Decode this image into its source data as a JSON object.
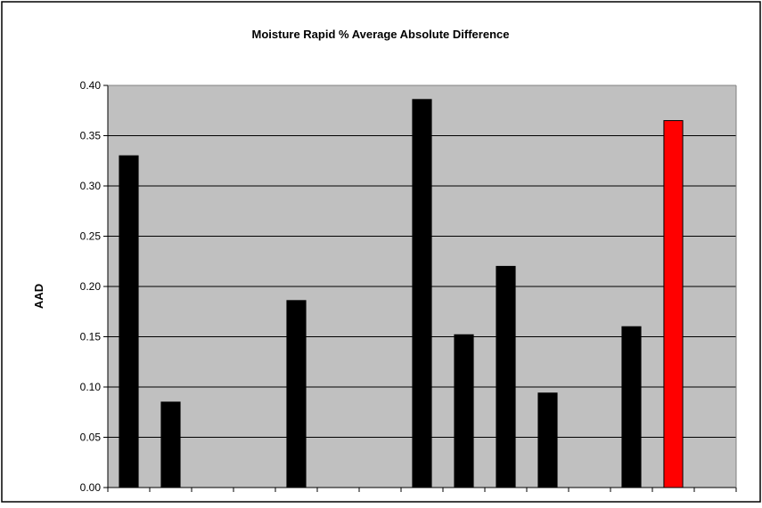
{
  "chart_data": {
    "type": "bar",
    "title": "Moisture Rapid % Average Absolute Difference",
    "xlabel": "",
    "ylabel": "AAD",
    "ylim": [
      0,
      0.4
    ],
    "yticks": [
      "0.00",
      "0.05",
      "0.10",
      "0.15",
      "0.20",
      "0.25",
      "0.30",
      "0.35",
      "0.40"
    ],
    "categories": [
      "",
      "",
      "",
      "",
      "",
      "",
      "",
      "",
      "",
      "",
      "",
      "",
      "",
      "",
      ""
    ],
    "values": [
      0.33,
      0.085,
      null,
      null,
      0.186,
      null,
      null,
      0.386,
      0.152,
      0.22,
      0.094,
      null,
      0.16,
      0.365,
      null
    ],
    "bar_colors": [
      "#000000",
      "#000000",
      null,
      null,
      "#000000",
      null,
      null,
      "#000000",
      "#000000",
      "#000000",
      "#000000",
      null,
      "#000000",
      "#ff0000",
      null
    ],
    "plot_background": "#c0c0c0",
    "grid": true,
    "legend": "none"
  }
}
